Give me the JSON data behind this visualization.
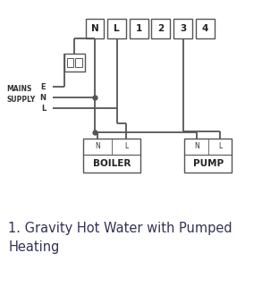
{
  "title": "1. Gravity Hot Water with Pumped\nHeating",
  "title_fontsize": 10.5,
  "bg_color": "#ffffff",
  "line_color": "#555555",
  "terminal_labels": [
    "N",
    "L",
    "1",
    "2",
    "3",
    "4"
  ],
  "boiler_label": "BOILER",
  "pump_label": "PUMP",
  "mains_label": "MAINS\nSUPPLY",
  "mains_lines": [
    "E",
    "N",
    "L"
  ]
}
